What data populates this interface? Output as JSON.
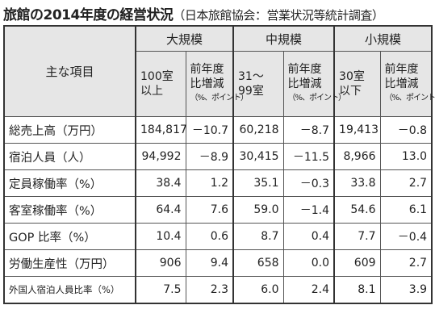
{
  "title": {
    "main": "旅館の2014年度の経営状況",
    "source": "（日本旅館協会：営業状況等統計調査）"
  },
  "table": {
    "item_header": "主な項目",
    "groups": [
      {
        "name": "大規模",
        "count": [
          "100室",
          "以上"
        ],
        "change": [
          "前年度",
          "比増減",
          "（%、ポイント）"
        ]
      },
      {
        "name": "中規模",
        "count": [
          "31～",
          "99室"
        ],
        "change": [
          "前年度",
          "比増減",
          "（%、ポイント）"
        ]
      },
      {
        "name": "小規模",
        "count": [
          "30室",
          "以下"
        ],
        "change": [
          "前年度",
          "比増減",
          "（%、ポイント）"
        ]
      }
    ],
    "rows": [
      [
        "総売上高（万円）",
        "184,817",
        "－10.7",
        "60,218",
        "－8.7",
        "19,413",
        "－0.8"
      ],
      [
        "宿泊人員（人）",
        "94,992",
        "－8.9",
        "30,415",
        "－11.5",
        "8,966",
        "13.0"
      ],
      [
        "定員稼働率（%）",
        "38.4",
        "1.2",
        "35.1",
        "－0.3",
        "33.8",
        "2.7"
      ],
      [
        "客室稼働率（%）",
        "64.4",
        "7.6",
        "59.0",
        "－1.4",
        "54.6",
        "6.1"
      ],
      [
        "GOP 比率（%）",
        "10.4",
        "0.6",
        "8.7",
        "0.4",
        "7.7",
        "－0.4"
      ],
      [
        "労働生産性（万円）",
        "906",
        "9.4",
        "658",
        "0.0",
        "609",
        "2.7"
      ],
      [
        "外国人宿泊人員比率（%）",
        "7.5",
        "2.3",
        "6.0",
        "2.4",
        "8.1",
        "3.9"
      ]
    ]
  }
}
